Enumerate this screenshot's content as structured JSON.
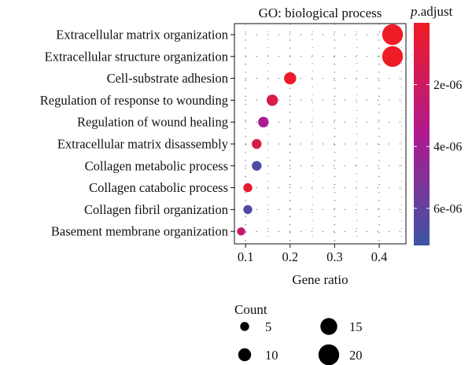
{
  "chart_data": {
    "type": "scatter",
    "title": "GO: biological process",
    "xlabel": "Gene ratio",
    "ylabel": "",
    "xlim": [
      0.075,
      0.46
    ],
    "xticks": [
      "0.1",
      "0.2",
      "0.3",
      "0.4"
    ],
    "xtick_values": [
      0.1,
      0.2,
      0.3,
      0.4
    ],
    "grid": "dotted",
    "categories": [
      "Extracellular matrix organization",
      "Extracellular structure organization",
      "Cell-substrate adhesion",
      "Regulation of response to wounding",
      "Regulation of wound healing",
      "Extracellular matrix disassembly",
      "Collagen metabolic process",
      "Collagen catabolic process",
      "Collagen fibril organization",
      "Basement membrane organization"
    ],
    "series": [
      {
        "x": [
          0.43,
          0.43,
          0.2,
          0.16,
          0.14,
          0.125,
          0.125,
          0.105,
          0.105,
          0.09
        ],
        "count": [
          20,
          20,
          9,
          8,
          7,
          6,
          6,
          5,
          5,
          4
        ],
        "p_adjust": [
          3e-09,
          3e-09,
          2e-07,
          1.2e-06,
          3.8e-06,
          1.2e-06,
          6.6e-06,
          5e-07,
          6.6e-06,
          2.4e-06
        ]
      }
    ],
    "colorbar": {
      "title": "p.adjust",
      "title_italic": "p",
      "title_rest": ".adjust",
      "ticks": [
        "2e-06",
        "4e-06",
        "6e-06"
      ],
      "tick_values": [
        2e-06,
        4e-06,
        6e-06
      ],
      "range": [
        0,
        7.2e-06
      ],
      "color_low": "#EE1C25",
      "color_mid": "#B0198F",
      "color_high": "#3C55A5"
    },
    "size_legend": {
      "title": "Count",
      "items": [
        {
          "value": 5,
          "label": "5"
        },
        {
          "value": 15,
          "label": "15"
        },
        {
          "value": 10,
          "label": "10"
        },
        {
          "value": 20,
          "label": "20"
        }
      ]
    }
  }
}
